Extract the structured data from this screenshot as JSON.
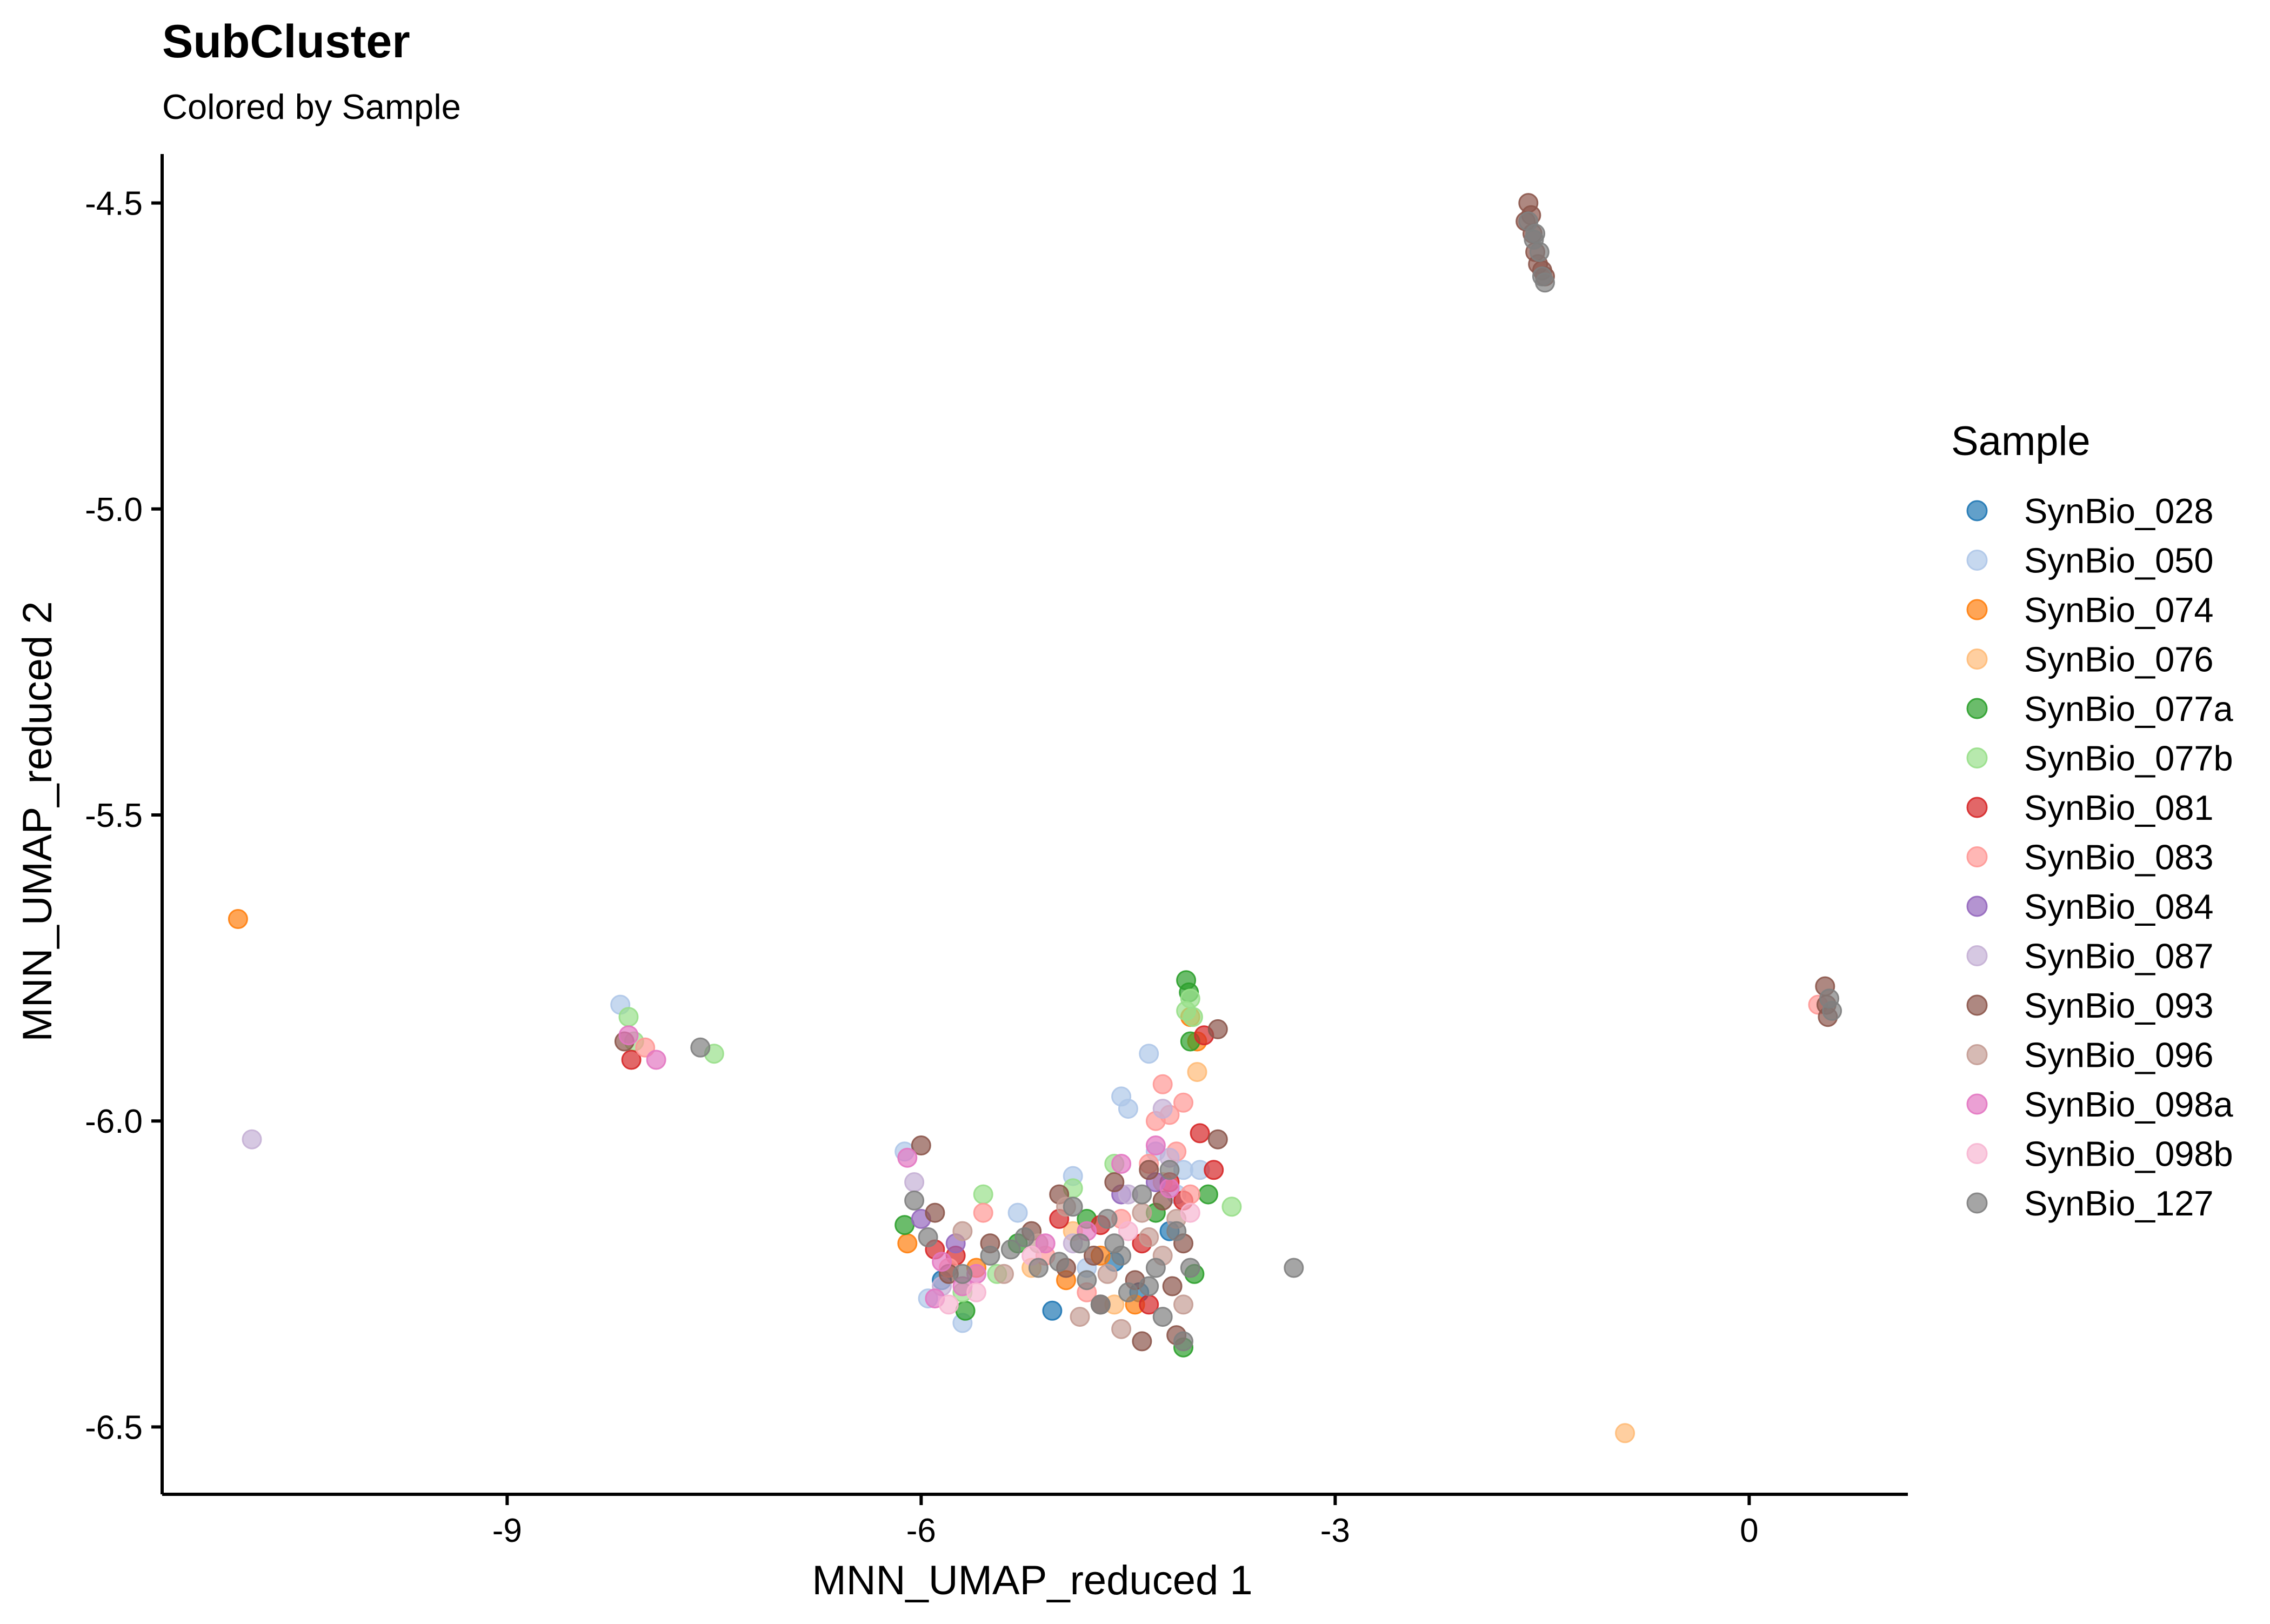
{
  "chart_data": {
    "type": "scatter",
    "title": "SubCluster",
    "subtitle": "Colored by Sample",
    "xlabel": "MNN_UMAP_reduced 1",
    "ylabel": "MNN_UMAP_reduced 2",
    "xlim": [
      -11.5,
      1.15
    ],
    "ylim": [
      -6.61,
      -4.42
    ],
    "xticks": [
      -9,
      -6,
      -3,
      0
    ],
    "xtick_labels": [
      "-9",
      "-6",
      "-3",
      "0"
    ],
    "yticks": [
      -4.5,
      -5.0,
      -5.5,
      -6.0,
      -6.5
    ],
    "ytick_labels": [
      "-4.5",
      "-5.0",
      "-5.5",
      "-6.0",
      "-6.5"
    ],
    "grid": false,
    "legend_title": "Sample",
    "legend_position": "right",
    "series": [
      {
        "name": "SynBio_028",
        "color": "#1F77B4",
        "points": [
          [
            -5.05,
            -6.31
          ],
          [
            -4.6,
            -6.23
          ],
          [
            -4.42,
            -6.28
          ],
          [
            -5.85,
            -6.26
          ],
          [
            -4.2,
            -6.18
          ]
        ]
      },
      {
        "name": "SynBio_050",
        "color": "#AEC7E8",
        "points": [
          [
            -8.18,
            -5.81
          ],
          [
            -6.12,
            -6.05
          ],
          [
            -5.7,
            -6.33
          ],
          [
            -4.35,
            -5.89
          ],
          [
            -4.3,
            -6.05
          ],
          [
            -4.1,
            -6.08
          ],
          [
            -4.5,
            -5.98
          ],
          [
            -4.9,
            -6.09
          ],
          [
            -5.3,
            -6.15
          ],
          [
            -5.95,
            -6.29
          ],
          [
            -4.15,
            -6.12
          ],
          [
            -4.8,
            -6.24
          ],
          [
            -3.98,
            -6.08
          ],
          [
            -4.55,
            -5.96
          ]
        ]
      },
      {
        "name": "SynBio_074",
        "color": "#FF7F0E",
        "points": [
          [
            -10.95,
            -5.67
          ],
          [
            -6.1,
            -6.2
          ],
          [
            -4.0,
            -5.87
          ],
          [
            -4.45,
            -6.3
          ],
          [
            -4.95,
            -6.26
          ],
          [
            -5.6,
            -6.24
          ],
          [
            -4.05,
            -5.83
          ],
          [
            -4.7,
            -6.22
          ]
        ]
      },
      {
        "name": "SynBio_076",
        "color": "#FFBB78",
        "points": [
          [
            -0.9,
            -6.51
          ],
          [
            -4.25,
            -6.1
          ],
          [
            -4.6,
            -6.3
          ],
          [
            -5.2,
            -6.24
          ],
          [
            -4.0,
            -5.92
          ],
          [
            -4.9,
            -6.18
          ]
        ]
      },
      {
        "name": "SynBio_077a",
        "color": "#2CA02C",
        "points": [
          [
            -4.08,
            -5.77
          ],
          [
            -4.1,
            -6.37
          ],
          [
            -4.05,
            -5.87
          ],
          [
            -3.92,
            -6.12
          ],
          [
            -6.12,
            -6.17
          ],
          [
            -5.3,
            -6.2
          ],
          [
            -4.3,
            -6.15
          ],
          [
            -4.02,
            -6.25
          ],
          [
            -5.68,
            -6.31
          ],
          [
            -4.8,
            -6.16
          ],
          [
            -4.06,
            -5.79
          ]
        ]
      },
      {
        "name": "SynBio_077b",
        "color": "#98DF8A",
        "points": [
          [
            -8.12,
            -5.83
          ],
          [
            -7.5,
            -5.89
          ],
          [
            -3.75,
            -6.14
          ],
          [
            -5.55,
            -6.12
          ],
          [
            -4.6,
            -6.07
          ],
          [
            -5.7,
            -6.28
          ],
          [
            -4.05,
            -5.8
          ],
          [
            -4.03,
            -5.83
          ],
          [
            -4.9,
            -6.11
          ],
          [
            -5.45,
            -6.25
          ],
          [
            -8.08,
            -5.87
          ],
          [
            -4.08,
            -5.82
          ]
        ]
      },
      {
        "name": "SynBio_081",
        "color": "#D62728",
        "points": [
          [
            -8.1,
            -5.9
          ],
          [
            -3.95,
            -5.86
          ],
          [
            -3.98,
            -6.02
          ],
          [
            -5.75,
            -6.22
          ],
          [
            -4.2,
            -6.1
          ],
          [
            -4.4,
            -6.2
          ],
          [
            -5.0,
            -6.16
          ],
          [
            -4.35,
            -6.3
          ],
          [
            -4.1,
            -6.13
          ],
          [
            -5.9,
            -6.21
          ],
          [
            -4.7,
            -6.17
          ],
          [
            -3.88,
            -6.08
          ]
        ]
      },
      {
        "name": "SynBio_083",
        "color": "#FF9896",
        "points": [
          [
            0.5,
            -5.81
          ],
          [
            -4.25,
            -5.94
          ],
          [
            -4.15,
            -6.05
          ],
          [
            -4.05,
            -6.12
          ],
          [
            -5.55,
            -6.15
          ],
          [
            -4.8,
            -6.28
          ],
          [
            -8.0,
            -5.88
          ],
          [
            -4.35,
            -6.07
          ],
          [
            -4.55,
            -6.16
          ],
          [
            -4.1,
            -5.97
          ],
          [
            -5.1,
            -6.22
          ],
          [
            -4.3,
            -6.0
          ],
          [
            -4.2,
            -5.99
          ],
          [
            -5.8,
            -6.24
          ]
        ]
      },
      {
        "name": "SynBio_084",
        "color": "#9467BD",
        "points": [
          [
            -5.75,
            -6.2
          ],
          [
            -4.55,
            -6.12
          ],
          [
            -6.0,
            -6.16
          ],
          [
            -4.3,
            -6.1
          ]
        ]
      },
      {
        "name": "SynBio_087",
        "color": "#C5B0D5",
        "points": [
          [
            -10.85,
            -6.03
          ],
          [
            -6.05,
            -6.1
          ],
          [
            -4.2,
            -6.06
          ],
          [
            -4.5,
            -6.12
          ],
          [
            -5.85,
            -6.27
          ],
          [
            -4.9,
            -6.2
          ],
          [
            -4.25,
            -5.98
          ]
        ]
      },
      {
        "name": "SynBio_093",
        "color": "#8C564B",
        "points": [
          [
            -1.6,
            -4.5
          ],
          [
            -1.58,
            -4.52
          ],
          [
            -1.57,
            -4.55
          ],
          [
            -1.53,
            -4.6
          ],
          [
            -1.5,
            -4.61
          ],
          [
            -1.48,
            -4.62
          ],
          [
            -1.62,
            -4.53
          ],
          [
            -1.55,
            -4.58
          ],
          [
            0.55,
            -5.78
          ],
          [
            0.56,
            -5.81
          ],
          [
            0.57,
            -5.83
          ],
          [
            -8.15,
            -5.87
          ],
          [
            -6.0,
            -6.04
          ],
          [
            -3.85,
            -5.85
          ],
          [
            -3.85,
            -6.03
          ],
          [
            -4.15,
            -6.35
          ],
          [
            -4.4,
            -6.36
          ],
          [
            -4.75,
            -6.22
          ],
          [
            -5.2,
            -6.18
          ],
          [
            -5.8,
            -6.25
          ],
          [
            -4.6,
            -6.1
          ],
          [
            -4.35,
            -6.08
          ],
          [
            -4.95,
            -6.24
          ],
          [
            -4.1,
            -6.2
          ],
          [
            -5.9,
            -6.15
          ],
          [
            -4.45,
            -6.26
          ],
          [
            -5.0,
            -6.12
          ],
          [
            -4.25,
            -6.13
          ],
          [
            -5.5,
            -6.2
          ],
          [
            -4.7,
            -6.3
          ],
          [
            -4.18,
            -6.27
          ]
        ]
      },
      {
        "name": "SynBio_096",
        "color": "#C49C94",
        "points": [
          [
            -4.4,
            -6.15
          ],
          [
            -4.65,
            -6.25
          ],
          [
            -5.15,
            -6.2
          ],
          [
            -4.1,
            -6.3
          ],
          [
            -4.85,
            -6.32
          ],
          [
            -4.25,
            -6.22
          ],
          [
            -5.4,
            -6.25
          ],
          [
            -4.55,
            -6.34
          ],
          [
            -4.95,
            -6.14
          ],
          [
            -4.35,
            -6.19
          ],
          [
            -5.7,
            -6.18
          ],
          [
            -4.15,
            -6.16
          ]
        ]
      },
      {
        "name": "SynBio_098a",
        "color": "#E377C2",
        "points": [
          [
            -8.12,
            -5.86
          ],
          [
            -7.92,
            -5.9
          ],
          [
            -6.1,
            -6.06
          ],
          [
            -5.85,
            -6.23
          ],
          [
            -5.7,
            -6.27
          ],
          [
            -4.3,
            -6.04
          ],
          [
            -4.55,
            -6.07
          ],
          [
            -5.9,
            -6.29
          ],
          [
            -5.1,
            -6.2
          ],
          [
            -4.2,
            -6.11
          ],
          [
            -5.6,
            -6.25
          ],
          [
            -4.8,
            -6.18
          ]
        ]
      },
      {
        "name": "SynBio_098b",
        "color": "#F7B6D2",
        "points": [
          [
            -5.8,
            -6.3
          ],
          [
            -4.5,
            -6.18
          ],
          [
            -5.2,
            -6.22
          ],
          [
            -4.05,
            -6.15
          ],
          [
            -5.6,
            -6.28
          ]
        ]
      },
      {
        "name": "SynBio_127",
        "color": "#7F7F7F",
        "points": [
          [
            -1.6,
            -4.53
          ],
          [
            -1.55,
            -4.55
          ],
          [
            -1.52,
            -4.58
          ],
          [
            -1.5,
            -4.62
          ],
          [
            -1.48,
            -4.63
          ],
          [
            -1.56,
            -4.56
          ],
          [
            0.58,
            -5.8
          ],
          [
            0.6,
            -5.82
          ],
          [
            -3.3,
            -6.24
          ],
          [
            -7.6,
            -5.88
          ],
          [
            -6.05,
            -6.13
          ],
          [
            -5.25,
            -6.19
          ],
          [
            -4.6,
            -6.2
          ],
          [
            -4.8,
            -6.26
          ],
          [
            -5.0,
            -6.23
          ],
          [
            -4.5,
            -6.28
          ],
          [
            -4.3,
            -6.24
          ],
          [
            -4.15,
            -6.18
          ],
          [
            -4.4,
            -6.12
          ],
          [
            -4.65,
            -6.16
          ],
          [
            -4.9,
            -6.14
          ],
          [
            -5.15,
            -6.24
          ],
          [
            -5.5,
            -6.22
          ],
          [
            -5.7,
            -6.25
          ],
          [
            -5.95,
            -6.19
          ],
          [
            -4.25,
            -6.32
          ],
          [
            -4.05,
            -6.24
          ],
          [
            -4.7,
            -6.3
          ],
          [
            -4.55,
            -6.22
          ],
          [
            -4.35,
            -6.27
          ],
          [
            -4.85,
            -6.2
          ],
          [
            -5.35,
            -6.21
          ],
          [
            -4.2,
            -6.08
          ],
          [
            -4.1,
            -6.36
          ]
        ]
      }
    ]
  }
}
